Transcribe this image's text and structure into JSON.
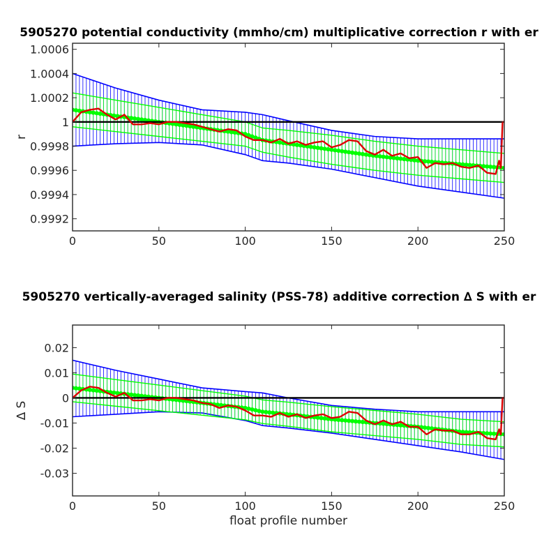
{
  "chart_data": [
    {
      "type": "line",
      "title": "5905270 potential conductivity (mmho/cm) multiplicative correction r with er",
      "xlabel": "",
      "ylabel": "r",
      "xlim": [
        0,
        250
      ],
      "ylim": [
        0.9991,
        1.00065
      ],
      "x_ticks": [
        0,
        50,
        100,
        150,
        200,
        250
      ],
      "y_ticks": [
        0.9992,
        0.9994,
        0.9996,
        0.9998,
        1,
        1.0002,
        1.0004,
        1.0006
      ],
      "y_tick_labels": [
        "0.9992",
        "0.9994",
        "0.9996",
        "0.9998",
        "1",
        "1.0002",
        "1.0004",
        "1.0006"
      ],
      "grid": false,
      "reference_line": 1,
      "series": [
        {
          "role": "fit",
          "color": "#00ff00",
          "x": [
            0,
            25,
            50,
            75,
            100,
            110,
            125,
            150,
            175,
            200,
            225,
            250
          ],
          "y": [
            1.0001,
            1.00005,
            1.0,
            0.99995,
            0.9999,
            0.99985,
            0.99982,
            0.99977,
            0.99972,
            0.99968,
            0.99965,
            0.99962
          ],
          "err_y": [
            0.00014,
            0.00013,
            0.00012,
            0.00011,
            0.0001,
            0.0001,
            0.00011,
            0.00012,
            0.00012,
            0.00012,
            0.00012,
            0.00012
          ]
        },
        {
          "role": "envelope",
          "color": "#0000ff",
          "x": [
            0,
            25,
            50,
            75,
            100,
            110,
            125,
            150,
            175,
            200,
            225,
            250
          ],
          "upper": [
            1.0004,
            1.00028,
            1.00018,
            1.0001,
            1.00008,
            1.00006,
            1.00001,
            0.99993,
            0.99988,
            0.99986,
            0.99986,
            0.99986
          ],
          "lower": [
            0.9998,
            0.99982,
            0.99983,
            0.99981,
            0.99973,
            0.99968,
            0.99966,
            0.99961,
            0.99954,
            0.99947,
            0.99942,
            0.99937
          ]
        },
        {
          "role": "estimate",
          "color": "#dd0000",
          "x": [
            0,
            5,
            10,
            15,
            20,
            25,
            30,
            35,
            40,
            45,
            50,
            55,
            60,
            65,
            70,
            75,
            80,
            85,
            90,
            95,
            100,
            105,
            110,
            115,
            120,
            125,
            130,
            135,
            140,
            145,
            150,
            155,
            160,
            165,
            170,
            175,
            180,
            185,
            190,
            195,
            200,
            205,
            210,
            215,
            220,
            225,
            230,
            235,
            240,
            245,
            247,
            248,
            249,
            250
          ],
          "y": [
            1.0,
            1.00008,
            1.0001,
            1.00011,
            1.00006,
            1.00002,
            1.00006,
            0.99998,
            0.99998,
            0.99999,
            0.99998,
            1.0,
            1.0,
            0.99999,
            0.99998,
            0.99996,
            0.99994,
            0.99992,
            0.99994,
            0.99993,
            0.99988,
            0.99985,
            0.99985,
            0.99983,
            0.99986,
            0.99982,
            0.99984,
            0.99981,
            0.99983,
            0.99984,
            0.99979,
            0.99981,
            0.99985,
            0.99984,
            0.99976,
            0.99973,
            0.99977,
            0.99972,
            0.99974,
            0.9997,
            0.99971,
            0.99962,
            0.99966,
            0.99965,
            0.99966,
            0.99963,
            0.99962,
            0.99964,
            0.99958,
            0.99957,
            0.99968,
            0.99962,
            1.0,
            1.0
          ]
        }
      ]
    },
    {
      "type": "line",
      "title": "5905270 vertically-averaged salinity (PSS-78) additive correction ∆ S with er",
      "xlabel": "float profile number",
      "ylabel": "∆ S",
      "xlim": [
        0,
        250
      ],
      "ylim": [
        -0.039,
        0.029
      ],
      "x_ticks": [
        0,
        50,
        100,
        150,
        200,
        250
      ],
      "y_ticks": [
        -0.03,
        -0.02,
        -0.01,
        0,
        0.01,
        0.02
      ],
      "y_tick_labels": [
        "-0.03",
        "-0.02",
        "-0.01",
        "0",
        "0.01",
        "0.02"
      ],
      "grid": false,
      "reference_line": 0,
      "series": [
        {
          "role": "fit",
          "color": "#00ff00",
          "x": [
            0,
            25,
            50,
            75,
            100,
            110,
            125,
            150,
            175,
            200,
            225,
            250
          ],
          "y": [
            0.004,
            0.002,
            0.0,
            -0.002,
            -0.004,
            -0.0055,
            -0.0065,
            -0.0085,
            -0.01,
            -0.0115,
            -0.0135,
            -0.0145
          ],
          "err_y": [
            0.0055,
            0.0053,
            0.0051,
            0.0049,
            0.0047,
            0.0047,
            0.0048,
            0.005,
            0.005,
            0.005,
            0.005,
            0.005
          ]
        },
        {
          "role": "envelope",
          "color": "#0000ff",
          "x": [
            0,
            25,
            50,
            75,
            100,
            110,
            125,
            150,
            175,
            200,
            225,
            250
          ],
          "upper": [
            0.015,
            0.011,
            0.0075,
            0.004,
            0.0025,
            0.002,
            0.0,
            -0.003,
            -0.0045,
            -0.0055,
            -0.0055,
            -0.0055
          ],
          "lower": [
            -0.0075,
            -0.0065,
            -0.0055,
            -0.006,
            -0.009,
            -0.011,
            -0.012,
            -0.014,
            -0.0165,
            -0.019,
            -0.0215,
            -0.0245
          ]
        },
        {
          "role": "estimate",
          "color": "#dd0000",
          "x": [
            0,
            5,
            10,
            15,
            20,
            25,
            30,
            35,
            40,
            45,
            50,
            55,
            60,
            65,
            70,
            75,
            80,
            85,
            90,
            95,
            100,
            105,
            110,
            115,
            120,
            125,
            130,
            135,
            140,
            145,
            150,
            155,
            160,
            165,
            170,
            175,
            180,
            185,
            190,
            195,
            200,
            205,
            210,
            215,
            220,
            225,
            230,
            235,
            240,
            245,
            247,
            248,
            249,
            250
          ],
          "y": [
            0.0,
            0.003,
            0.0045,
            0.004,
            0.002,
            0.0005,
            0.002,
            -0.001,
            -0.001,
            -0.0005,
            -0.001,
            0.0,
            0.0,
            -0.0005,
            -0.001,
            -0.002,
            -0.0025,
            -0.004,
            -0.003,
            -0.0035,
            -0.005,
            -0.007,
            -0.007,
            -0.0075,
            -0.006,
            -0.0075,
            -0.0065,
            -0.008,
            -0.007,
            -0.0065,
            -0.008,
            -0.0075,
            -0.0055,
            -0.006,
            -0.009,
            -0.0105,
            -0.009,
            -0.0105,
            -0.0095,
            -0.0115,
            -0.0115,
            -0.0145,
            -0.0125,
            -0.013,
            -0.013,
            -0.0145,
            -0.0145,
            -0.0135,
            -0.016,
            -0.0165,
            -0.0125,
            -0.0145,
            0.0,
            0.0
          ]
        }
      ]
    }
  ]
}
